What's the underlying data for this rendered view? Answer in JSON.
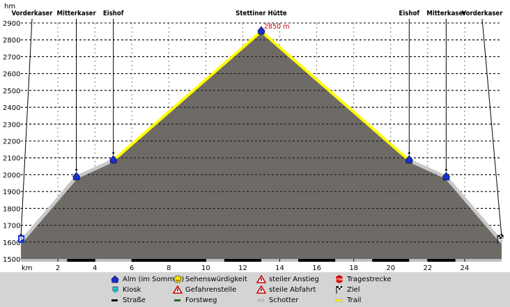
{
  "chart_data": {
    "type": "area",
    "ylabel": "hm",
    "xlabel": "km",
    "ylim": [
      1500,
      2900
    ],
    "xlim": [
      0,
      26
    ],
    "y_ticks": [
      1500,
      1600,
      1700,
      1800,
      1900,
      2000,
      2100,
      2200,
      2300,
      2400,
      2500,
      2600,
      2700,
      2800,
      2900
    ],
    "x_ticks": [
      2,
      4,
      6,
      8,
      10,
      12,
      14,
      16,
      18,
      20,
      22,
      24
    ],
    "grid": "horizontal-dashed",
    "profile": {
      "x": [
        0,
        3,
        5,
        13,
        21,
        23,
        26
      ],
      "y": [
        1600,
        1985,
        2085,
        2850,
        2085,
        1985,
        1600
      ]
    },
    "trail_segment": {
      "x_from": 5,
      "x_to": 21
    },
    "surface_segments": [
      {
        "type": "Trail",
        "x_from": 5,
        "x_to": 21
      },
      {
        "type": "Schotter",
        "x_from": 0,
        "x_to": 5
      },
      {
        "type": "Schotter",
        "x_from": 21,
        "x_to": 26
      }
    ],
    "road_bar_segments": [
      [
        2.5,
        4.0
      ],
      [
        6.0,
        10.0
      ],
      [
        11.0,
        13.0
      ],
      [
        15.0,
        17.0
      ],
      [
        19.0,
        21.0
      ],
      [
        22.0,
        23.5
      ]
    ],
    "peak_label": "2850 m",
    "waypoints": [
      {
        "name": "Vorderkaser",
        "x": 0,
        "y": 1600,
        "icon": "parking"
      },
      {
        "name": "Mitterkaser",
        "x": 3,
        "y": 1985,
        "icon": "alm"
      },
      {
        "name": "Eishof",
        "x": 5,
        "y": 2085,
        "icon": "alm"
      },
      {
        "name": "Stettiner Hütte",
        "x": 13,
        "y": 2850,
        "icon": "alm"
      },
      {
        "name": "Eishof",
        "x": 21,
        "y": 2085,
        "icon": "alm"
      },
      {
        "name": "Mitterkaser",
        "x": 23,
        "y": 1985,
        "icon": "alm"
      },
      {
        "name": "Vorderkaser",
        "x": 26,
        "y": 1600,
        "icon": "finish-flag"
      }
    ],
    "colors": {
      "area": "#6e6a66",
      "trail": "#ffff00",
      "schotter": "#c8c8c8",
      "grid": "#000000",
      "alm": "#1a2fd0",
      "peak_label": "#cc0000"
    }
  },
  "legend": [
    {
      "label": "Alm (im Sommer)",
      "icon": "alm-icon"
    },
    {
      "label": "Kiosk",
      "icon": "kiosk-icon"
    },
    {
      "label": "Straße",
      "icon": "strasse-icon"
    },
    {
      "label": "Sehenswürdigkeit",
      "icon": "smiley-icon"
    },
    {
      "label": "Gefahrenstelle",
      "icon": "warning-icon"
    },
    {
      "label": "Forstweg",
      "icon": "forstweg-icon"
    },
    {
      "label": "steiler Anstieg",
      "icon": "steep-up-icon"
    },
    {
      "label": "steile Abfahrt",
      "icon": "steep-down-icon"
    },
    {
      "label": "Schotter",
      "icon": "schotter-icon"
    },
    {
      "label": "Tragestrecke",
      "icon": "stop-icon",
      "icon_text": "STOP"
    },
    {
      "label": "Ziel",
      "icon": "finish-flag-icon"
    },
    {
      "label": "Trail",
      "icon": "trail-icon"
    }
  ]
}
